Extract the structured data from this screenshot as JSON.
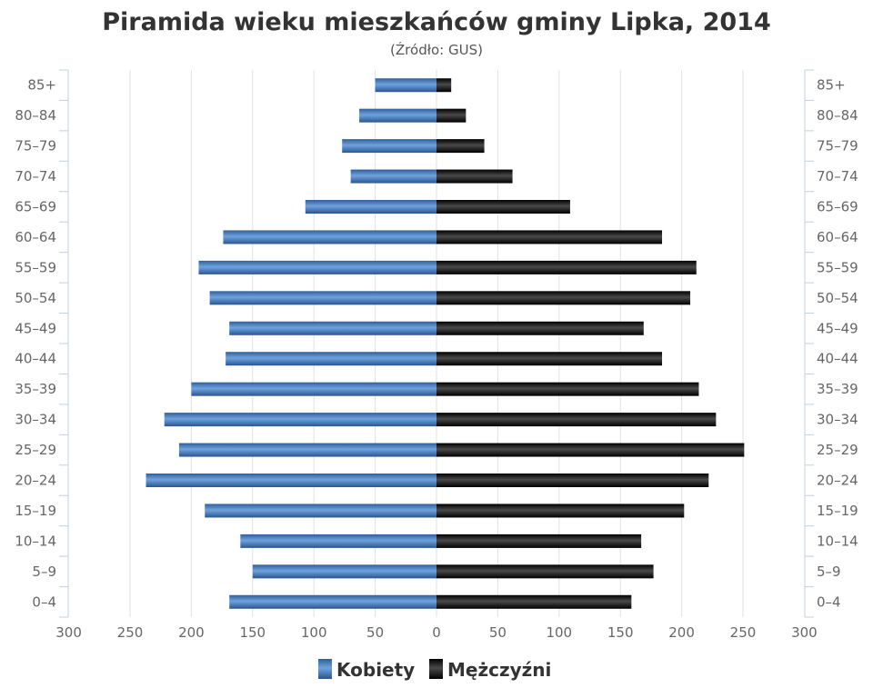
{
  "chart_data": {
    "type": "bar",
    "orientation": "horizontal",
    "title": "Piramida wieku mieszkańców gminy Lipka, 2014",
    "subtitle": "(Źródło: GUS)",
    "categories": [
      "0–4",
      "5–9",
      "10–14",
      "15–19",
      "20–24",
      "25–29",
      "30–34",
      "35–39",
      "40–44",
      "45–49",
      "50–54",
      "55–59",
      "60–64",
      "65–69",
      "70–74",
      "75–79",
      "80–84",
      "85+"
    ],
    "series": [
      {
        "name": "Kobiety",
        "color": "#4a7fc0",
        "values": [
          169,
          150,
          160,
          189,
          237,
          210,
          222,
          200,
          172,
          169,
          185,
          194,
          174,
          107,
          70,
          77,
          63,
          50
        ]
      },
      {
        "name": "Mężczyźni",
        "color": "#1a1a1a",
        "values": [
          159,
          177,
          167,
          202,
          222,
          251,
          228,
          214,
          184,
          169,
          207,
          212,
          184,
          109,
          62,
          39,
          24,
          12
        ]
      }
    ],
    "xlim": [
      -300,
      300
    ],
    "x_ticks": [
      300,
      250,
      200,
      150,
      100,
      50,
      0,
      50,
      100,
      150,
      200,
      250,
      300
    ],
    "grid": true,
    "legend_position": "bottom"
  }
}
